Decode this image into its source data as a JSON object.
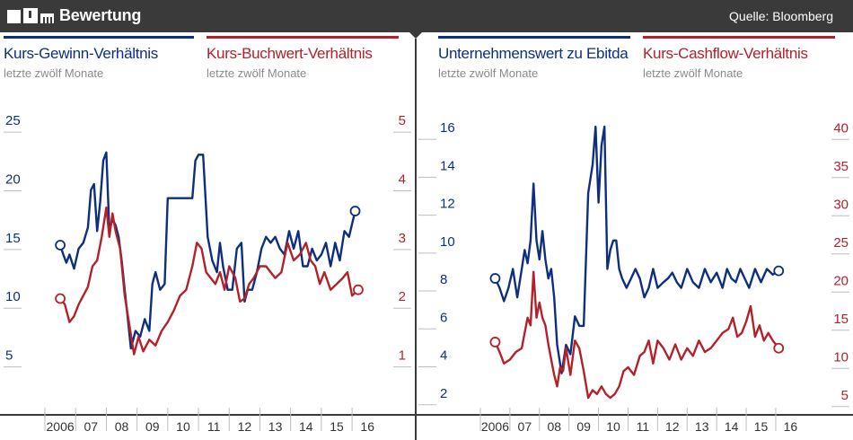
{
  "header": {
    "title": "Bewertung",
    "source": "Quelle: Bloomberg"
  },
  "colors": {
    "blue": "#0e2f7e",
    "red": "#b3212b",
    "dark": "#3a3a3a",
    "grey": "#bdbdbd"
  },
  "chart_data": [
    {
      "type": "line",
      "xlabel": "",
      "ylabel": "",
      "x_ticks": [
        "2006",
        "07",
        "08",
        "09",
        "10",
        "11",
        "12",
        "13",
        "14",
        "15",
        "16"
      ],
      "x_range": [
        2005.5,
        2016.9
      ],
      "series": [
        {
          "name": "Kurs-Gewinn-Verhältnis",
          "subtitle": "letzte zwölf Monate",
          "axis": "left",
          "y_ticks": [
            5,
            10,
            15,
            20,
            25
          ],
          "ylim": [
            0,
            26
          ],
          "grid": false,
          "x": [
            2006.0,
            2006.1,
            2006.2,
            2006.3,
            2006.45,
            2006.6,
            2006.75,
            2006.9,
            2007.0,
            2007.1,
            2007.2,
            2007.3,
            2007.4,
            2007.5,
            2007.6,
            2007.7,
            2007.8,
            2007.9,
            2008.0,
            2008.1,
            2008.2,
            2008.3,
            2008.45,
            2008.6,
            2008.75,
            2008.9,
            2009.0,
            2009.1,
            2009.25,
            2009.4,
            2009.5,
            2009.7,
            2009.9,
            2010.1,
            2010.3,
            2010.4,
            2010.5,
            2010.65,
            2010.8,
            2010.95,
            2011.1,
            2011.2,
            2011.3,
            2011.45,
            2011.6,
            2011.75,
            2011.9,
            2012.0,
            2012.1,
            2012.25,
            2012.4,
            2012.55,
            2012.7,
            2012.85,
            2013.0,
            2013.15,
            2013.3,
            2013.45,
            2013.6,
            2013.75,
            2013.9,
            2014.05,
            2014.2,
            2014.35,
            2014.5,
            2014.65,
            2014.8,
            2014.95,
            2015.1,
            2015.25,
            2015.4,
            2015.6
          ],
          "y": [
            14.3,
            13.5,
            12.8,
            13.5,
            12.3,
            14.0,
            14.5,
            15.8,
            19.0,
            19.5,
            15.5,
            18.0,
            21.5,
            22.2,
            15.5,
            16.5,
            16.0,
            15.0,
            13.0,
            10.5,
            8.0,
            5.5,
            7.0,
            6.5,
            8.0,
            7.0,
            11.0,
            12.0,
            10.5,
            11.0,
            18.3,
            18.3,
            18.3,
            18.3,
            18.3,
            21.5,
            22.0,
            22.0,
            15.0,
            13.0,
            12.0,
            14.5,
            12.5,
            10.5,
            10.5,
            14.0,
            14.5,
            9.5,
            10.5,
            10.5,
            12.0,
            14.0,
            15.0,
            14.5,
            15.0,
            14.0,
            13.5,
            15.5,
            14.0,
            15.5,
            12.5,
            12.5,
            14.0,
            13.0,
            13.5,
            14.5,
            12.5,
            14.5,
            13.0,
            15.5,
            15.0,
            17.2
          ]
        },
        {
          "name": "Kurs-Buchwert-Verhältnis",
          "subtitle": "letzte zwölf Monate",
          "axis": "right",
          "y_ticks": [
            1,
            2,
            3,
            4,
            5
          ],
          "ylim": [
            0,
            5.2
          ],
          "grid": false,
          "x": [
            2006.0,
            2006.15,
            2006.3,
            2006.45,
            2006.6,
            2006.75,
            2006.9,
            2007.05,
            2007.2,
            2007.35,
            2007.5,
            2007.6,
            2007.7,
            2007.8,
            2007.95,
            2008.1,
            2008.25,
            2008.4,
            2008.55,
            2008.7,
            2008.9,
            2009.1,
            2009.3,
            2009.5,
            2009.7,
            2009.9,
            2010.1,
            2010.3,
            2010.45,
            2010.6,
            2010.75,
            2010.9,
            2011.05,
            2011.2,
            2011.35,
            2011.5,
            2011.7,
            2011.85,
            2012.0,
            2012.15,
            2012.3,
            2012.5,
            2012.7,
            2012.85,
            2013.0,
            2013.2,
            2013.4,
            2013.6,
            2013.8,
            2014.0,
            2014.15,
            2014.3,
            2014.45,
            2014.6,
            2014.8,
            2015.0,
            2015.2,
            2015.35,
            2015.5,
            2015.7
          ],
          "y": [
            1.95,
            1.85,
            1.55,
            1.65,
            1.85,
            2.0,
            2.15,
            2.5,
            2.6,
            3.0,
            3.5,
            3.0,
            3.4,
            3.1,
            2.8,
            2.0,
            1.5,
            1.0,
            1.3,
            1.05,
            1.25,
            1.15,
            1.4,
            1.55,
            1.75,
            2.0,
            2.1,
            2.5,
            2.9,
            2.8,
            2.4,
            2.3,
            2.2,
            2.4,
            2.1,
            2.5,
            2.3,
            1.9,
            1.95,
            2.2,
            2.3,
            2.5,
            2.5,
            2.4,
            2.3,
            2.4,
            2.9,
            2.6,
            2.7,
            2.9,
            2.6,
            2.5,
            2.2,
            2.4,
            2.1,
            2.2,
            2.3,
            2.4,
            2.0,
            2.1
          ]
        }
      ],
      "end_markers": true
    },
    {
      "type": "line",
      "xlabel": "",
      "ylabel": "",
      "x_ticks": [
        "2006",
        "07",
        "08",
        "09",
        "10",
        "11",
        "12",
        "13",
        "14",
        "15",
        "16"
      ],
      "x_range": [
        2005.5,
        2016.9
      ],
      "series": [
        {
          "name": "Unternehmenswert zu Ebitda",
          "subtitle": "letzte zwölf Monate",
          "axis": "left",
          "y_ticks": [
            2,
            4,
            6,
            8,
            10,
            12,
            14,
            16
          ],
          "ylim": [
            0.9,
            17.0
          ],
          "grid": false,
          "x": [
            2006.0,
            2006.15,
            2006.3,
            2006.45,
            2006.6,
            2006.75,
            2006.9,
            2007.0,
            2007.1,
            2007.2,
            2007.3,
            2007.4,
            2007.5,
            2007.6,
            2007.7,
            2007.8,
            2007.9,
            2008.0,
            2008.1,
            2008.25,
            2008.4,
            2008.55,
            2008.7,
            2008.85,
            2009.0,
            2009.15,
            2009.3,
            2009.4,
            2009.5,
            2009.6,
            2009.7,
            2009.8,
            2009.9,
            2010.0,
            2010.1,
            2010.2,
            2010.3,
            2010.45,
            2010.6,
            2010.75,
            2010.9,
            2011.05,
            2011.2,
            2011.35,
            2011.5,
            2011.7,
            2011.85,
            2012.0,
            2012.15,
            2012.3,
            2012.5,
            2012.7,
            2012.9,
            2013.1,
            2013.3,
            2013.5,
            2013.7,
            2013.85,
            2014.0,
            2014.15,
            2014.3,
            2014.45,
            2014.6,
            2014.8,
            2015.0,
            2015.2,
            2015.4,
            2015.6
          ],
          "y": [
            8.0,
            7.5,
            6.8,
            7.5,
            8.5,
            7.0,
            8.5,
            9.5,
            8.8,
            10.0,
            13.0,
            10.0,
            9.0,
            10.5,
            9.0,
            8.0,
            8.5,
            7.0,
            4.5,
            3.0,
            4.5,
            4.0,
            6.0,
            5.5,
            5.5,
            12.5,
            14.0,
            16.0,
            12.0,
            15.0,
            16.0,
            8.5,
            9.5,
            10.0,
            10.0,
            8.5,
            8.0,
            7.5,
            8.0,
            8.5,
            8.0,
            7.0,
            7.5,
            8.5,
            7.5,
            7.8,
            8.0,
            8.3,
            7.8,
            7.5,
            8.5,
            7.8,
            7.5,
            8.5,
            7.8,
            8.3,
            7.5,
            8.5,
            8.0,
            7.8,
            8.5,
            8.0,
            7.5,
            8.5,
            7.8,
            8.5,
            8.2,
            8.4
          ]
        },
        {
          "name": "Kurs-Cashflow-Verhältnis",
          "subtitle": "letzte zwölf Monate",
          "axis": "right",
          "y_ticks": [
            5,
            10,
            15,
            20,
            25,
            30,
            35,
            40
          ],
          "ylim": [
            2.5,
            42.5
          ],
          "grid": false,
          "x": [
            2006.0,
            2006.15,
            2006.3,
            2006.5,
            2006.7,
            2006.9,
            2007.0,
            2007.1,
            2007.2,
            2007.3,
            2007.4,
            2007.5,
            2007.6,
            2007.7,
            2007.8,
            2007.9,
            2008.0,
            2008.1,
            2008.2,
            2008.3,
            2008.4,
            2008.55,
            2008.7,
            2008.85,
            2009.0,
            2009.15,
            2009.3,
            2009.45,
            2009.6,
            2009.75,
            2009.9,
            2010.05,
            2010.2,
            2010.35,
            2010.5,
            2010.7,
            2010.9,
            2011.05,
            2011.2,
            2011.35,
            2011.5,
            2011.7,
            2011.9,
            2012.1,
            2012.3,
            2012.5,
            2012.7,
            2012.9,
            2013.1,
            2013.3,
            2013.5,
            2013.7,
            2013.9,
            2014.05,
            2014.2,
            2014.35,
            2014.5,
            2014.65,
            2014.8,
            2014.95,
            2015.1,
            2015.25,
            2015.4,
            2015.6
          ],
          "y": [
            11.8,
            10.5,
            9.0,
            9.5,
            10.5,
            11.0,
            13.0,
            15.0,
            14.0,
            21.0,
            15.0,
            17.0,
            15.0,
            14.0,
            11.5,
            9.5,
            7.5,
            6.0,
            8.5,
            8.0,
            11.0,
            7.5,
            12.0,
            11.0,
            8.0,
            4.5,
            5.5,
            5.0,
            6.0,
            5.0,
            4.5,
            5.0,
            6.0,
            8.0,
            8.5,
            7.5,
            10.0,
            10.5,
            12.0,
            9.0,
            12.0,
            11.0,
            9.5,
            11.5,
            9.5,
            11.0,
            10.0,
            12.0,
            10.5,
            11.0,
            12.0,
            13.0,
            13.5,
            15.0,
            12.5,
            13.0,
            14.5,
            16.5,
            12.5,
            14.0,
            12.0,
            13.0,
            12.0,
            11.0
          ]
        }
      ],
      "end_markers": true
    }
  ]
}
